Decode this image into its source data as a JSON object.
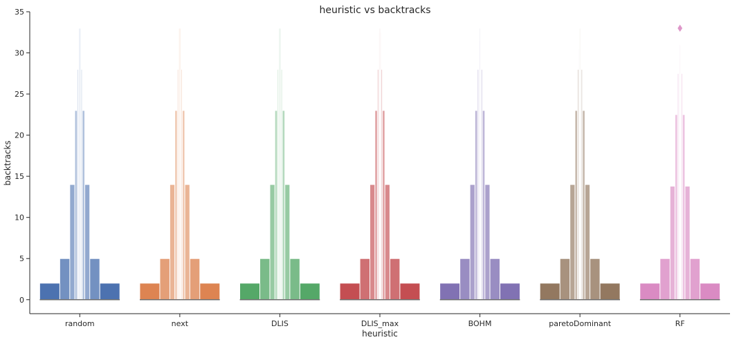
{
  "chart_data": {
    "type": "boxen",
    "title": "heuristic vs backtracks",
    "xlabel": "heuristic",
    "ylabel": "backtracks",
    "ylim": [
      -1.7,
      35
    ],
    "yticks": [
      0,
      5,
      10,
      15,
      20,
      25,
      30,
      35
    ],
    "grid": false,
    "categories": [
      "random",
      "next",
      "DLIS",
      "DLIS_max",
      "BOHM",
      "paretoDominant",
      "RF"
    ],
    "colors": [
      "#4c72b0",
      "#dd8452",
      "#55a868",
      "#c44e52",
      "#8172b3",
      "#937860",
      "#da8bc3"
    ],
    "series": [
      {
        "category": "random",
        "median": 0,
        "levels": [
          [
            0,
            2
          ],
          [
            0,
            5
          ],
          [
            0,
            14
          ],
          [
            0,
            23
          ],
          [
            0,
            28
          ],
          [
            0,
            33
          ]
        ],
        "outliers": []
      },
      {
        "category": "next",
        "median": 0,
        "levels": [
          [
            0,
            2
          ],
          [
            0,
            5
          ],
          [
            0,
            14
          ],
          [
            0,
            23
          ],
          [
            0,
            28
          ],
          [
            0,
            33
          ]
        ],
        "outliers": []
      },
      {
        "category": "DLIS",
        "median": 0,
        "levels": [
          [
            0,
            2
          ],
          [
            0,
            5
          ],
          [
            0,
            14
          ],
          [
            0,
            23
          ],
          [
            0,
            28
          ],
          [
            0,
            33
          ]
        ],
        "outliers": []
      },
      {
        "category": "DLIS_max",
        "median": 0,
        "levels": [
          [
            0,
            2
          ],
          [
            0,
            5
          ],
          [
            0,
            14
          ],
          [
            0,
            23
          ],
          [
            0,
            28
          ],
          [
            0,
            32.5
          ],
          [
            0,
            33
          ]
        ],
        "outliers": []
      },
      {
        "category": "BOHM",
        "median": 0,
        "levels": [
          [
            0,
            2
          ],
          [
            0,
            5
          ],
          [
            0,
            14
          ],
          [
            0,
            23
          ],
          [
            0,
            28
          ],
          [
            0,
            31.5
          ],
          [
            0,
            33
          ]
        ],
        "outliers": []
      },
      {
        "category": "paretoDominant",
        "median": 0,
        "levels": [
          [
            0,
            2
          ],
          [
            0,
            5
          ],
          [
            0,
            14
          ],
          [
            0,
            23
          ],
          [
            0,
            28
          ],
          [
            0,
            30.5
          ],
          [
            0,
            33
          ]
        ],
        "outliers": []
      },
      {
        "category": "RF",
        "median": 0,
        "levels": [
          [
            0,
            2
          ],
          [
            0,
            5
          ],
          [
            0,
            13.8
          ],
          [
            0,
            22.5
          ],
          [
            0,
            27.5
          ],
          [
            0,
            29.3
          ],
          [
            0,
            31
          ]
        ],
        "outliers": [
          33
        ]
      }
    ]
  }
}
